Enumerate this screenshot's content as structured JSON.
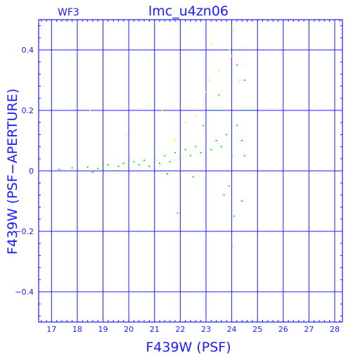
{
  "chart_data": {
    "type": "scatter",
    "title": "lmc_u4zn06",
    "subtitle": "WF3",
    "xlabel": "F439W (PSF)",
    "ylabel": "F439W (PSF−APERTURE)",
    "xlim": [
      16.5,
      28.3
    ],
    "ylim": [
      -0.5,
      0.5
    ],
    "xticks": [
      17,
      18,
      19,
      20,
      21,
      22,
      23,
      24,
      25,
      26,
      27,
      28
    ],
    "yticks": [
      -0.4,
      -0.2,
      0,
      0.2,
      0.4
    ],
    "xtick_labels": [
      "17",
      "18",
      "19",
      "20",
      "21",
      "22",
      "23",
      "24",
      "25",
      "26",
      "27",
      "28"
    ],
    "ytick_labels": [
      "−0.4",
      "−0.2",
      "0",
      "0.2",
      "0.4"
    ],
    "grid": true,
    "colors": {
      "axes": "#1a1aff",
      "grid": "#1a1aff",
      "main": "#00ee00",
      "rejected": "#ffee00"
    },
    "series": [
      {
        "color": "#00ee00",
        "points": [
          [
            17.3,
            0.005
          ],
          [
            17.8,
            0.01
          ],
          [
            18.1,
            0.0
          ],
          [
            18.4,
            0.012
          ],
          [
            18.6,
            -0.005
          ],
          [
            18.8,
            0.008
          ],
          [
            19.0,
            0.01
          ],
          [
            19.2,
            0.02
          ],
          [
            19.4,
            0.0
          ],
          [
            19.6,
            0.015
          ],
          [
            19.8,
            0.025
          ],
          [
            20.0,
            0.01
          ],
          [
            20.2,
            0.03
          ],
          [
            20.4,
            0.02
          ],
          [
            20.6,
            0.035
          ],
          [
            20.8,
            0.015
          ],
          [
            21.0,
            0.04
          ],
          [
            21.2,
            0.025
          ],
          [
            21.4,
            0.05
          ],
          [
            21.6,
            0.03
          ],
          [
            21.8,
            0.06
          ],
          [
            22.0,
            0.04
          ],
          [
            22.2,
            0.07
          ],
          [
            22.4,
            0.05
          ],
          [
            22.6,
            0.08
          ],
          [
            22.8,
            0.06
          ],
          [
            23.0,
            0.09
          ],
          [
            23.2,
            0.07
          ],
          [
            23.4,
            0.1
          ],
          [
            23.6,
            0.08
          ],
          [
            23.8,
            0.12
          ],
          [
            24.0,
            0.05
          ],
          [
            24.2,
            0.15
          ],
          [
            24.4,
            0.1
          ],
          [
            24.5,
            0.3
          ],
          [
            24.3,
            0.4
          ],
          [
            24.1,
            -0.15
          ],
          [
            24.0,
            -0.25
          ],
          [
            23.9,
            -0.05
          ],
          [
            22.5,
            -0.02
          ],
          [
            21.5,
            -0.01
          ],
          [
            23.5,
            0.25
          ],
          [
            24.2,
            0.35
          ],
          [
            24.6,
            0.2
          ],
          [
            24.4,
            -0.1
          ],
          [
            22.9,
            0.15
          ],
          [
            23.3,
            0.2
          ],
          [
            24.5,
            0.05
          ],
          [
            23.7,
            -0.08
          ],
          [
            21.9,
            -0.14
          ]
        ]
      },
      {
        "color": "#ffee00",
        "points": [
          [
            19.9,
            0.12
          ],
          [
            21.3,
            0.2
          ],
          [
            22.6,
            0.18
          ],
          [
            23.1,
            0.3
          ],
          [
            23.5,
            0.33
          ],
          [
            23.9,
            0.4
          ],
          [
            24.1,
            0.46
          ],
          [
            23.2,
            0.42
          ],
          [
            22.9,
            0.22
          ],
          [
            24.3,
            0.3
          ],
          [
            22.2,
            0.16
          ],
          [
            18.5,
            0.2
          ],
          [
            23.0,
            0.26
          ],
          [
            24.0,
            0.38
          ],
          [
            21.8,
            0.1
          ]
        ]
      }
    ]
  }
}
